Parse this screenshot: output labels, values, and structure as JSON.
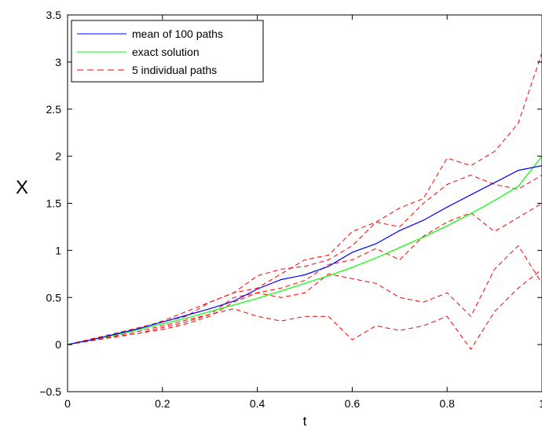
{
  "chart_data": {
    "type": "line",
    "title": "",
    "xlabel": "t",
    "ylabel": "X",
    "xlim": [
      0,
      1
    ],
    "ylim": [
      -0.5,
      3.5
    ],
    "xticks": [
      0,
      0.2,
      0.4,
      0.6,
      0.8,
      1
    ],
    "yticks": [
      -0.5,
      0,
      0.5,
      1,
      1.5,
      2,
      2.5,
      3,
      3.5
    ],
    "xtick_labels": [
      "0",
      "0.2",
      "0.4",
      "0.6",
      "0.8",
      "1"
    ],
    "ytick_labels": [
      "−0.5",
      "0",
      "0.5",
      "1",
      "1.5",
      "2",
      "2.5",
      "3",
      "3.5"
    ],
    "grid": false,
    "legend_position": "top-left",
    "series": [
      {
        "name": "mean of 100 paths",
        "color": "#0000ff",
        "style": "solid",
        "x": [
          0,
          0.05,
          0.1,
          0.15,
          0.2,
          0.25,
          0.3,
          0.35,
          0.4,
          0.45,
          0.5,
          0.55,
          0.6,
          0.65,
          0.7,
          0.75,
          0.8,
          0.85,
          0.9,
          0.95,
          1.0
        ],
        "y": [
          0,
          0.05,
          0.11,
          0.17,
          0.24,
          0.31,
          0.38,
          0.46,
          0.59,
          0.69,
          0.74,
          0.83,
          0.98,
          1.07,
          1.21,
          1.32,
          1.46,
          1.59,
          1.72,
          1.85,
          1.9
        ]
      },
      {
        "name": "exact solution",
        "color": "#00ff00",
        "style": "solid",
        "x": [
          0,
          0.05,
          0.1,
          0.15,
          0.2,
          0.25,
          0.3,
          0.35,
          0.4,
          0.45,
          0.5,
          0.55,
          0.6,
          0.65,
          0.7,
          0.75,
          0.8,
          0.85,
          0.9,
          0.95,
          1.0
        ],
        "y": [
          0,
          0.05,
          0.1,
          0.16,
          0.22,
          0.28,
          0.35,
          0.42,
          0.49,
          0.57,
          0.65,
          0.73,
          0.82,
          0.92,
          1.03,
          1.14,
          1.26,
          1.39,
          1.53,
          1.68,
          2.0
        ]
      },
      {
        "name": "5 individual paths",
        "color": "#ff0000",
        "style": "dashed",
        "paths": [
          {
            "x": [
              0,
              0.05,
              0.1,
              0.15,
              0.2,
              0.25,
              0.3,
              0.35,
              0.4,
              0.45,
              0.5,
              0.55,
              0.6,
              0.65,
              0.7,
              0.75,
              0.8,
              0.85,
              0.9,
              0.95,
              1.0
            ],
            "y": [
              0,
              0.05,
              0.1,
              0.17,
              0.25,
              0.35,
              0.45,
              0.55,
              0.73,
              0.8,
              0.83,
              0.9,
              1.05,
              1.3,
              1.45,
              1.55,
              1.98,
              1.9,
              2.05,
              2.35,
              3.1
            ]
          },
          {
            "x": [
              0,
              0.05,
              0.1,
              0.15,
              0.2,
              0.25,
              0.3,
              0.35,
              0.4,
              0.45,
              0.5,
              0.55,
              0.6,
              0.65,
              0.7,
              0.75,
              0.8,
              0.85,
              0.9,
              0.95,
              1.0
            ],
            "y": [
              0,
              0.06,
              0.12,
              0.18,
              0.24,
              0.3,
              0.45,
              0.55,
              0.6,
              0.75,
              0.9,
              0.95,
              1.2,
              1.3,
              1.25,
              1.5,
              1.7,
              1.8,
              1.7,
              1.65,
              1.8
            ]
          },
          {
            "x": [
              0,
              0.05,
              0.1,
              0.15,
              0.2,
              0.25,
              0.3,
              0.35,
              0.4,
              0.45,
              0.5,
              0.55,
              0.6,
              0.65,
              0.7,
              0.75,
              0.8,
              0.85,
              0.9,
              0.95,
              1.0
            ],
            "y": [
              0,
              0.04,
              0.09,
              0.14,
              0.2,
              0.26,
              0.32,
              0.5,
              0.55,
              0.6,
              0.68,
              0.85,
              0.9,
              1.02,
              0.9,
              1.15,
              1.3,
              1.4,
              1.2,
              1.35,
              1.5
            ]
          },
          {
            "x": [
              0,
              0.05,
              0.1,
              0.15,
              0.2,
              0.25,
              0.3,
              0.35,
              0.4,
              0.45,
              0.5,
              0.55,
              0.6,
              0.65,
              0.7,
              0.75,
              0.8,
              0.85,
              0.9,
              0.95,
              1.0
            ],
            "y": [
              0,
              0.05,
              0.08,
              0.12,
              0.16,
              0.22,
              0.3,
              0.45,
              0.55,
              0.5,
              0.55,
              0.75,
              0.7,
              0.65,
              0.5,
              0.45,
              0.55,
              0.3,
              0.8,
              1.05,
              0.65
            ]
          },
          {
            "x": [
              0,
              0.05,
              0.1,
              0.15,
              0.2,
              0.25,
              0.3,
              0.35,
              0.4,
              0.45,
              0.5,
              0.55,
              0.6,
              0.65,
              0.7,
              0.75,
              0.8,
              0.85,
              0.9,
              0.95,
              1.0
            ],
            "y": [
              0,
              0.04,
              0.08,
              0.12,
              0.18,
              0.24,
              0.32,
              0.38,
              0.3,
              0.25,
              0.3,
              0.3,
              0.05,
              0.2,
              0.15,
              0.2,
              0.3,
              -0.05,
              0.35,
              0.6,
              0.8
            ]
          }
        ]
      }
    ],
    "legend": [
      "mean of 100 paths",
      "exact solution",
      "5 individual paths"
    ]
  }
}
